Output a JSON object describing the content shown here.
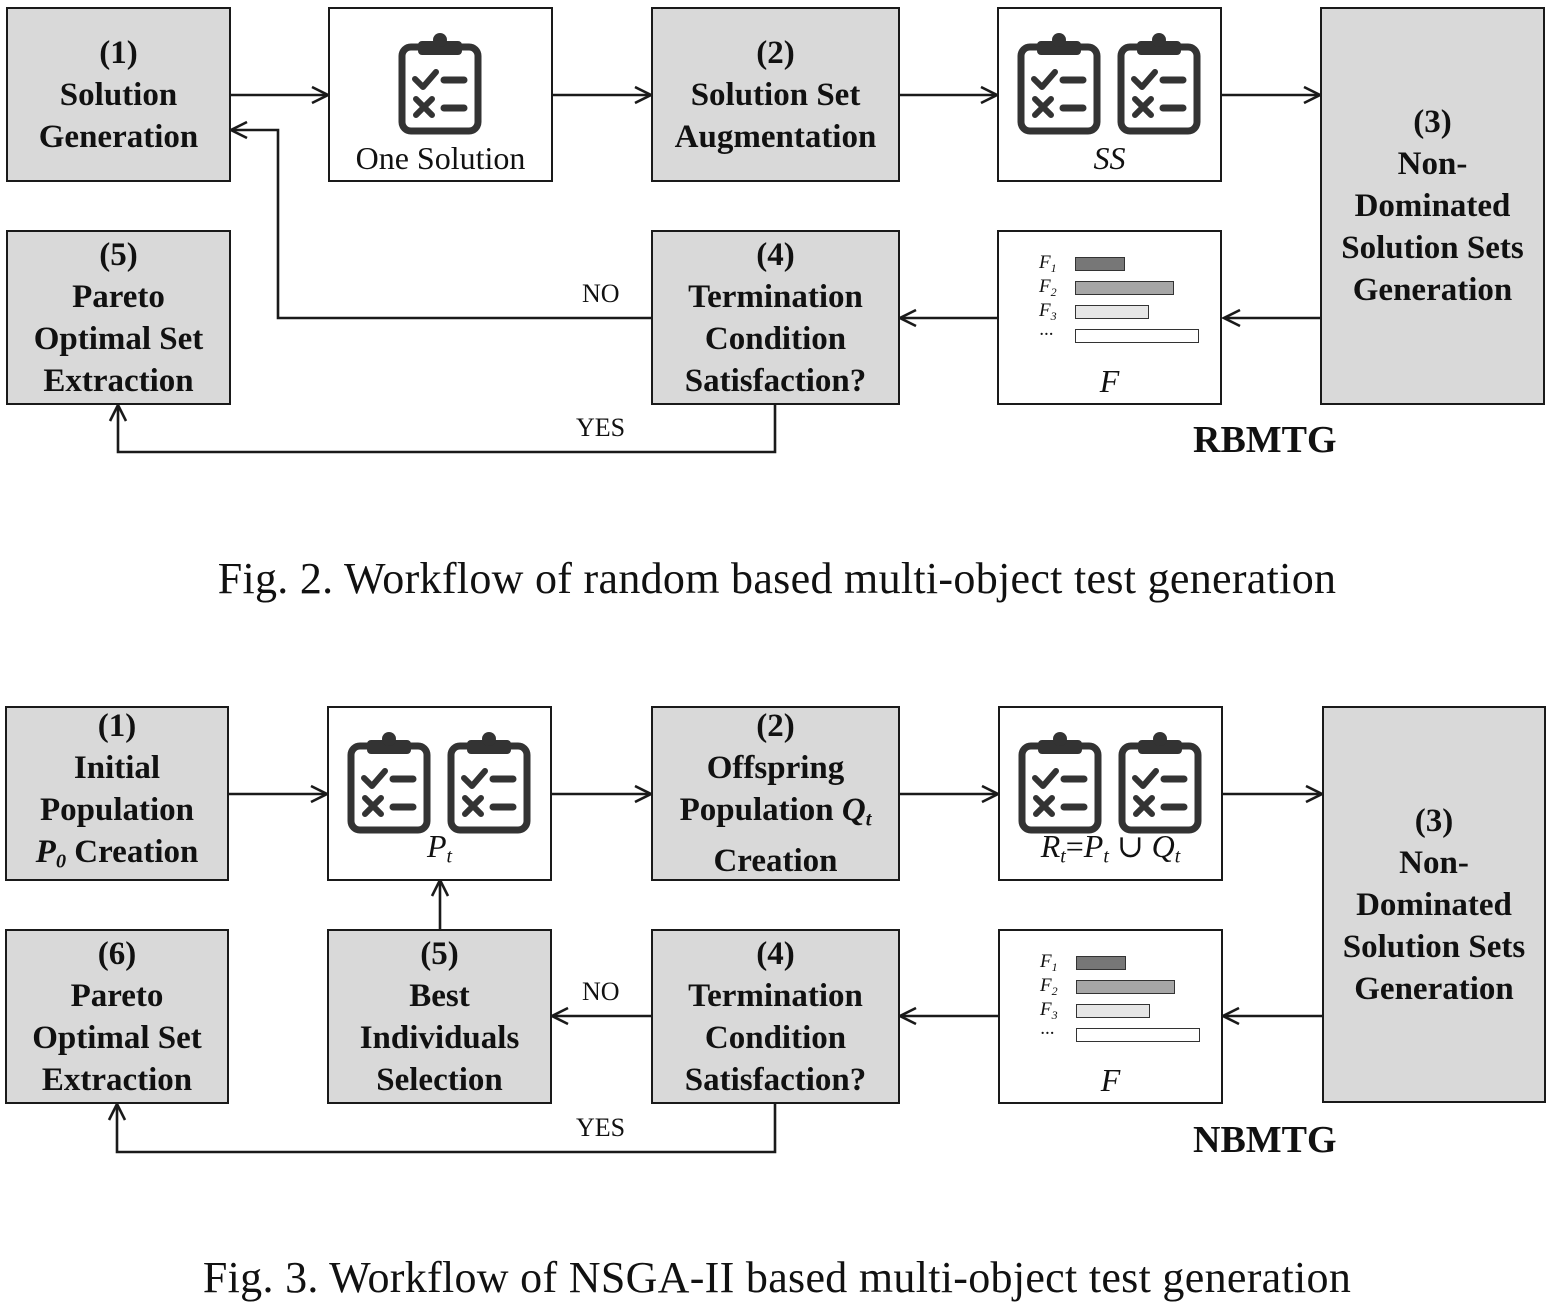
{
  "fig2": {
    "box1_num": "(1)",
    "box1_line1": "Solution",
    "box1_line2": "Generation",
    "one_solution": "One Solution",
    "box2_num": "(2)",
    "box2_line1": "Solution Set",
    "box2_line2": "Augmentation",
    "ss_label": "SS",
    "box3_num": "(3)",
    "box3_line1": "Non-",
    "box3_line2": "Dominated",
    "box3_line3": "Solution Sets",
    "box3_line4": "Generation",
    "box4_num": "(4)",
    "box4_line1": "Termination",
    "box4_line2": "Condition",
    "box4_line3": "Satisfaction?",
    "box5_num": "(5)",
    "box5_line1": "Pareto",
    "box5_line2": "Optimal Set",
    "box5_line3": "Extraction",
    "f_label": "F",
    "no_label": "NO",
    "yes_label": "YES",
    "alg_name": "RBMTG",
    "caption": "Fig. 2.  Workflow of random based multi-object test generation"
  },
  "fig3": {
    "box1_num": "(1)",
    "box1_line1": "Initial",
    "box1_line2": "Population",
    "box1_line3_var": "P",
    "box1_line3_sub": "0",
    "box1_line3_rest": " Creation",
    "pt_var": "P",
    "pt_sub": "t",
    "box2_num": "(2)",
    "box2_line1": "Offspring",
    "box2_line2_text": "Population ",
    "box2_line2_var": "Q",
    "box2_line2_sub": "t",
    "box2_line3": "Creation",
    "rt_r": "R",
    "rt_r_sub": "t",
    "rt_eq": "=",
    "rt_p": "P",
    "rt_p_sub": "t",
    "rt_union": " ∪ ",
    "rt_q": "Q",
    "rt_q_sub": "t",
    "box3_num": "(3)",
    "box3_line1": "Non-",
    "box3_line2": "Dominated",
    "box3_line3": "Solution Sets",
    "box3_line4": "Generation",
    "box4_num": "(4)",
    "box4_line1": "Termination",
    "box4_line2": "Condition",
    "box4_line3": "Satisfaction?",
    "box5_num": "(5)",
    "box5_line1": "Best",
    "box5_line2": "Individuals",
    "box5_line3": "Selection",
    "box6_num": "(6)",
    "box6_line1": "Pareto",
    "box6_line2": "Optimal Set",
    "box6_line3": "Extraction",
    "f_label": "F",
    "no_label": "NO",
    "yes_label": "YES",
    "alg_name": "NBMTG",
    "caption": "Fig. 3.  Workflow of NSGA-II based multi-object test generation"
  },
  "objective_bars": {
    "labels": [
      "F",
      "F",
      "F",
      "···"
    ],
    "label_subs": [
      "1",
      "2",
      "3",
      ""
    ],
    "fills": [
      "#777777",
      "#a6a6a6",
      "#e6e6e6",
      "#ffffff"
    ],
    "relative_lengths": [
      0.4,
      0.8,
      0.6,
      1.0
    ]
  },
  "colors": {
    "process_box": "#d9d9d9",
    "data_box": "#ffffff",
    "line": "#1a1a1a",
    "icon": "#333333"
  },
  "icons": [
    "clipboard-checklist-icon"
  ]
}
